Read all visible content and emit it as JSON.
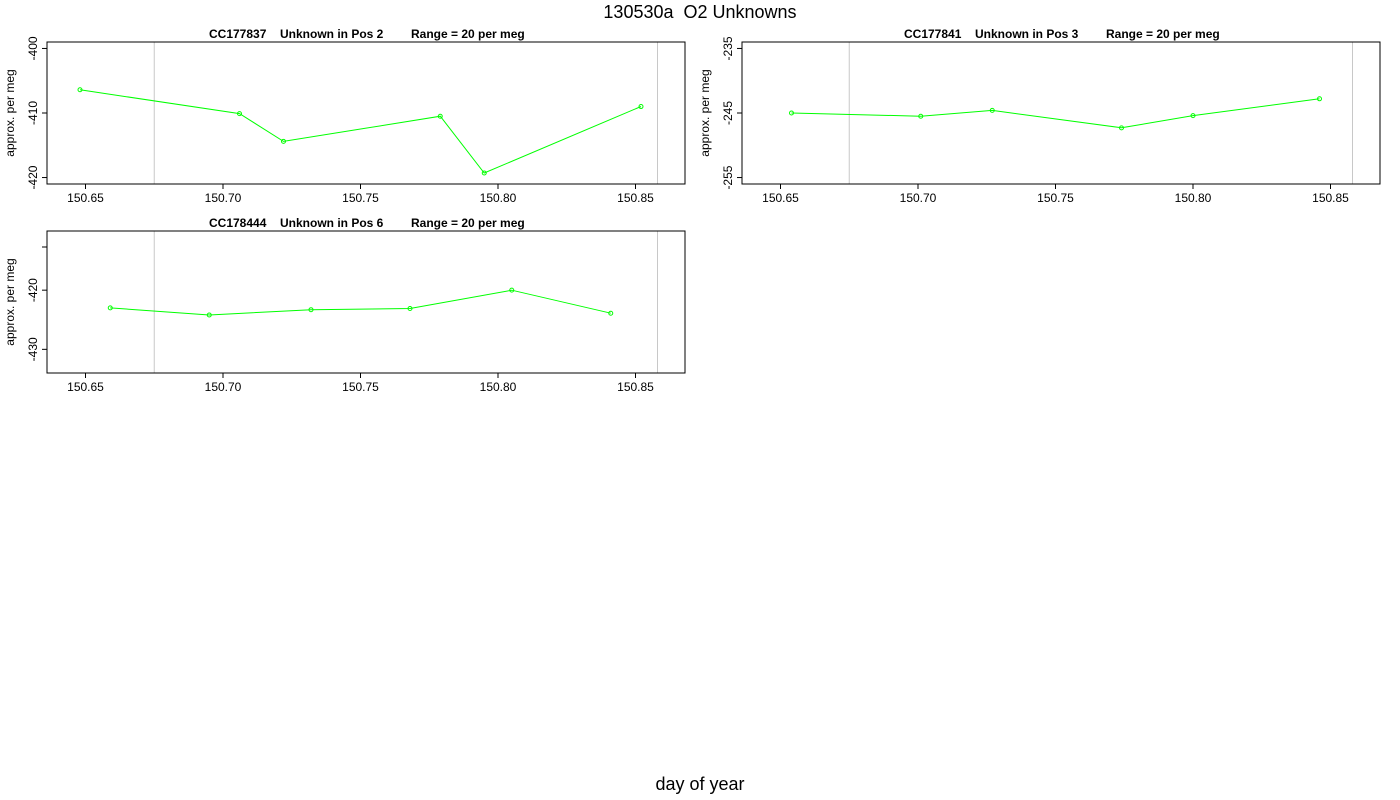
{
  "title": "130530a  O2 Unknowns",
  "x_axis_title": "day of year",
  "colors": {
    "series": "#00ff00",
    "reference_line": "#c8c8c8",
    "axis": "#000000"
  },
  "chart_data": [
    {
      "type": "line",
      "id": "CC177837",
      "position_label": "Unknown in Pos 2",
      "range_label": "Range = 20 per meg",
      "ylabel": "approx. per meg",
      "xlim": [
        150.636,
        150.868
      ],
      "ylim": [
        -399,
        -421
      ],
      "xticks": [
        150.65,
        150.7,
        150.75,
        150.8,
        150.85
      ],
      "yticks": [
        -400,
        -410,
        -420
      ],
      "reference_lines_x": [
        150.675,
        150.858
      ],
      "x": [
        150.648,
        150.706,
        150.722,
        150.779,
        150.795,
        150.852
      ],
      "y": [
        -406.4,
        -410.1,
        -414.4,
        -410.5,
        -419.3,
        -409.0
      ]
    },
    {
      "type": "line",
      "id": "CC177841",
      "position_label": "Unknown in Pos 3",
      "range_label": "Range = 20 per meg",
      "ylabel": "approx. per meg",
      "xlim": [
        150.636,
        150.868
      ],
      "ylim": [
        -234,
        -256
      ],
      "xticks": [
        150.65,
        150.7,
        150.75,
        150.8,
        150.85
      ],
      "yticks": [
        -235,
        -245,
        -255
      ],
      "reference_lines_x": [
        150.675,
        150.858
      ],
      "x": [
        150.654,
        150.701,
        150.727,
        150.774,
        150.8,
        150.846
      ],
      "y": [
        -245.0,
        -245.5,
        -244.6,
        -247.3,
        -245.4,
        -242.8
      ]
    },
    {
      "type": "line",
      "id": "CC178444",
      "position_label": "Unknown in Pos 6",
      "range_label": "Range = 20 per meg",
      "ylabel": "approx. per meg",
      "xlim": [
        150.636,
        150.868
      ],
      "ylim": [
        -410,
        -434
      ],
      "xticks": [
        150.65,
        150.7,
        150.75,
        150.8,
        150.85
      ],
      "yticks": [
        -420,
        -430
      ],
      "reference_lines_x": [
        150.675,
        150.858
      ],
      "x": [
        150.659,
        150.695,
        150.732,
        150.768,
        150.805,
        150.841
      ],
      "y": [
        -423.0,
        -424.2,
        -423.3,
        -423.1,
        -420.0,
        -423.9
      ]
    }
  ]
}
